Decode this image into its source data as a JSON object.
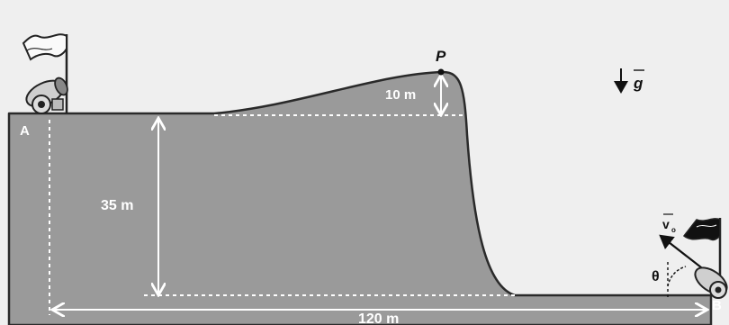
{
  "labels": {
    "point_a": "A",
    "point_b": "B",
    "point_p": "P",
    "height_hill": "10 m",
    "height_cliff": "35 m",
    "distance": "120 m",
    "gravity": "g",
    "velocity": "v",
    "velocity_sub": "o",
    "angle": "θ"
  },
  "colors": {
    "background": "#efefef",
    "terrain": "#9a9a9a",
    "terrain_edge": "#2a2a2a",
    "dashed": "#ffffff",
    "text_light": "#ffffff",
    "text_dark": "#111111"
  }
}
